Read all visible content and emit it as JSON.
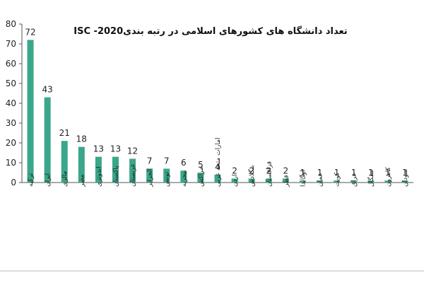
{
  "chart_data": {
    "type": "bar",
    "title": "تعداد دانشگاه های کشورهای اسلامی در رتبه بندیISC -2020",
    "categories": [
      "ترکیه",
      "ایران",
      "مالزی",
      "مصر",
      "اندونزی",
      "پاکستان",
      "عربستان",
      "الجزایر",
      "تونس",
      "نیجریه",
      "مراکش",
      "امارات متحد عربی",
      "اردن",
      "بنگلادش",
      "قزاقستان",
      "قطر",
      "اوگاندا",
      "عمان",
      "کویت",
      "عراق",
      "سنگال",
      "کامرون",
      "سودان"
    ],
    "values": [
      72,
      43,
      21,
      18,
      13,
      13,
      12,
      7,
      7,
      6,
      5,
      4,
      2,
      2,
      2,
      2,
      1,
      1,
      1,
      1,
      1,
      1,
      1
    ],
    "ylim": [
      0,
      80
    ],
    "yticks": [
      "0",
      "10",
      "20",
      "30",
      "40",
      "50",
      "60",
      "70",
      "80"
    ],
    "xlabel": "",
    "ylabel": "",
    "grid": false,
    "bar_color": "#3aa68a",
    "axis_color": "#555555"
  }
}
